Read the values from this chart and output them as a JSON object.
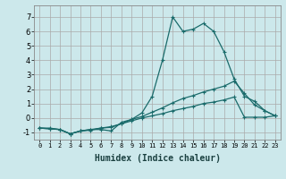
{
  "xlabel": "Humidex (Indice chaleur)",
  "bg_color": "#cce8eb",
  "grid_color": "#b0d8dc",
  "line_color": "#1a6b6b",
  "xlim": [
    -0.5,
    23.5
  ],
  "ylim": [
    -1.5,
    7.8
  ],
  "yticks": [
    -1,
    0,
    1,
    2,
    3,
    4,
    5,
    6,
    7
  ],
  "xticks": [
    0,
    1,
    2,
    3,
    4,
    5,
    6,
    7,
    8,
    9,
    10,
    11,
    12,
    13,
    14,
    15,
    16,
    17,
    18,
    19,
    20,
    21,
    22,
    23
  ],
  "line1_x": [
    0,
    1,
    2,
    3,
    4,
    5,
    6,
    7,
    8,
    9,
    10,
    11,
    12,
    13,
    14,
    15,
    16,
    17,
    18,
    19,
    20,
    21,
    22,
    23
  ],
  "line1_y": [
    -0.7,
    -0.7,
    -0.8,
    -1.1,
    -0.9,
    -0.8,
    -0.8,
    -0.9,
    -0.3,
    -0.1,
    0.35,
    1.5,
    4.0,
    7.0,
    6.0,
    6.15,
    6.55,
    6.0,
    4.6,
    2.7,
    1.5,
    1.15,
    0.5,
    0.15
  ],
  "line2_x": [
    0,
    1,
    2,
    3,
    4,
    5,
    6,
    7,
    8,
    9,
    10,
    11,
    12,
    13,
    14,
    15,
    16,
    17,
    18,
    19,
    20,
    21,
    22,
    23
  ],
  "line2_y": [
    -0.7,
    -0.75,
    -0.8,
    -1.1,
    -0.9,
    -0.8,
    -0.7,
    -0.65,
    -0.4,
    -0.1,
    0.1,
    0.4,
    0.7,
    1.05,
    1.35,
    1.55,
    1.8,
    2.0,
    2.2,
    2.55,
    1.7,
    0.9,
    0.5,
    0.15
  ],
  "line3_x": [
    0,
    1,
    2,
    3,
    4,
    5,
    6,
    7,
    8,
    9,
    10,
    11,
    12,
    13,
    14,
    15,
    16,
    17,
    18,
    19,
    20,
    21,
    22,
    23
  ],
  "line3_y": [
    -0.7,
    -0.75,
    -0.8,
    -1.1,
    -0.9,
    -0.85,
    -0.7,
    -0.6,
    -0.4,
    -0.2,
    0.0,
    0.15,
    0.3,
    0.5,
    0.65,
    0.8,
    1.0,
    1.1,
    1.25,
    1.45,
    0.05,
    0.05,
    0.05,
    0.15
  ]
}
